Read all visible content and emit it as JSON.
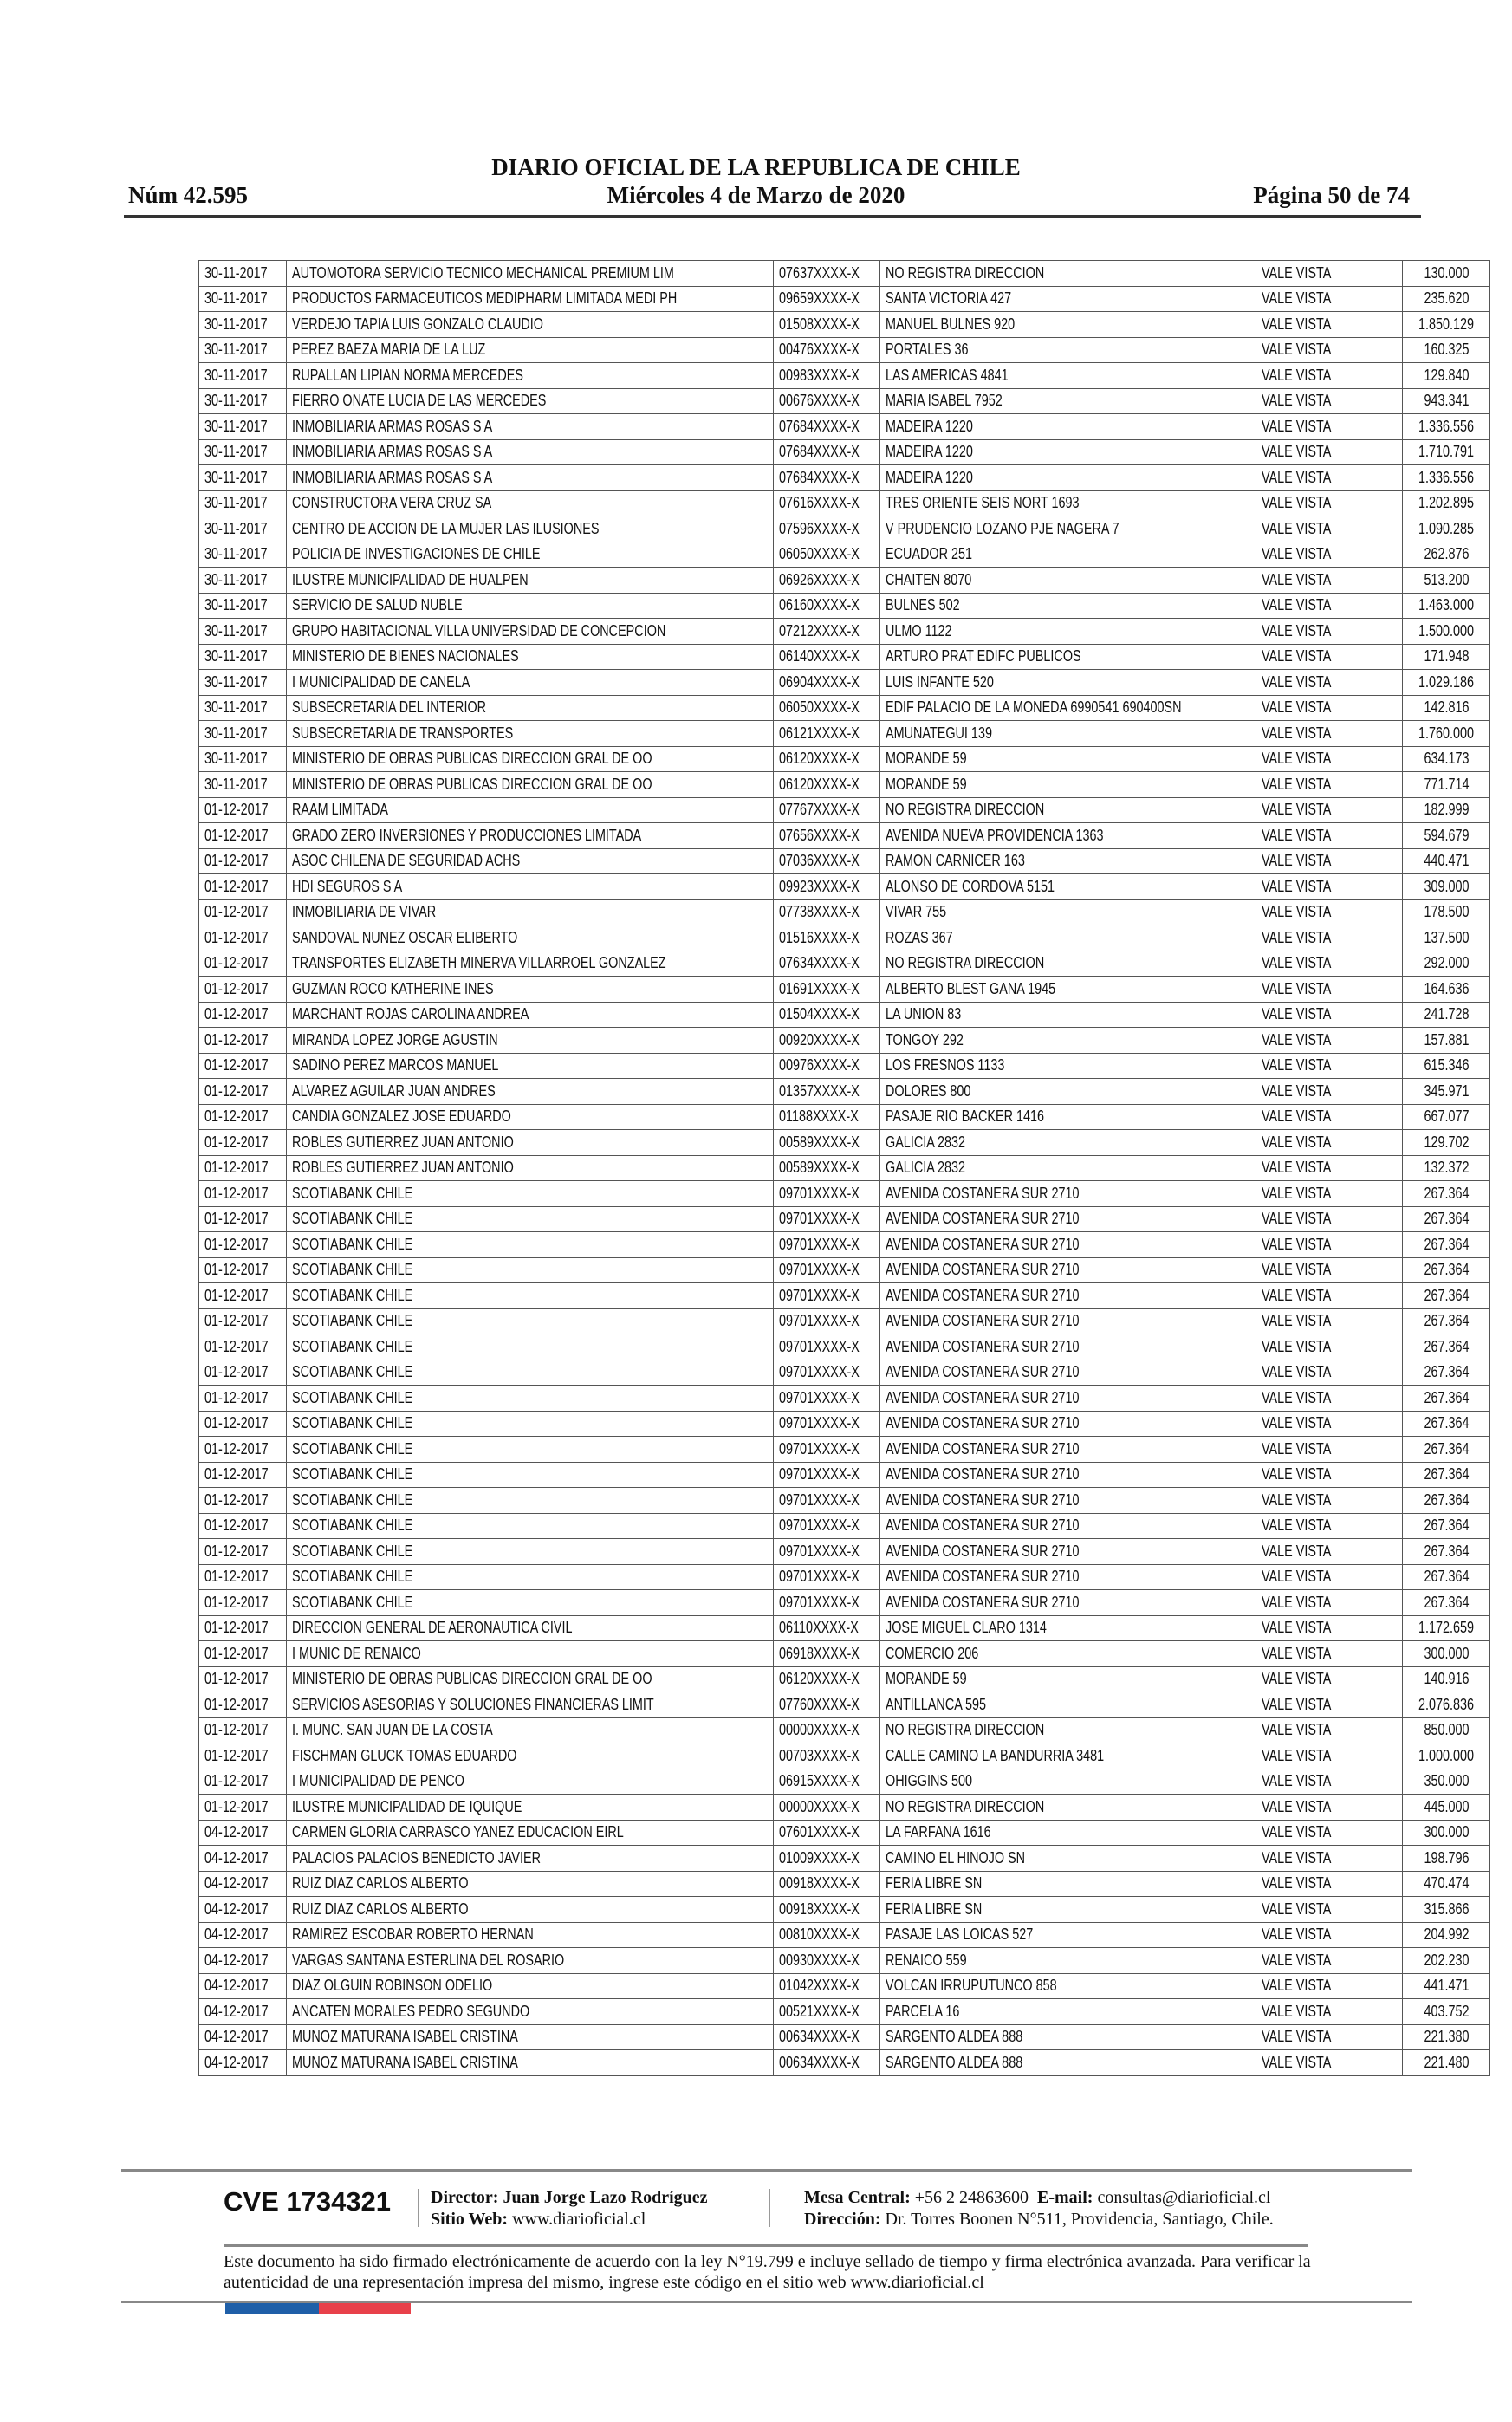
{
  "header": {
    "title": "DIARIO OFICIAL DE LA REPUBLICA DE CHILE",
    "date": "Miércoles 4 de Marzo de 2020",
    "number": "Núm 42.595",
    "page": "Página 50 de 74"
  },
  "rows": [
    [
      "30-11-2017",
      "AUTOMOTORA SERVICIO TECNICO MECHANICAL PREMIUM LIM",
      "07637XXXX-X",
      "NO REGISTRA DIRECCION",
      "VALE VISTA",
      "130.000"
    ],
    [
      "30-11-2017",
      "PRODUCTOS FARMACEUTICOS MEDIPHARM LIMITADA MEDI PH",
      "09659XXXX-X",
      "SANTA VICTORIA 427",
      "VALE VISTA",
      "235.620"
    ],
    [
      "30-11-2017",
      "VERDEJO TAPIA LUIS GONZALO CLAUDIO",
      "01508XXXX-X",
      "MANUEL BULNES 920",
      "VALE VISTA",
      "1.850.129"
    ],
    [
      "30-11-2017",
      "PEREZ BAEZA MARIA DE LA LUZ",
      "00476XXXX-X",
      "PORTALES 36",
      "VALE VISTA",
      "160.325"
    ],
    [
      "30-11-2017",
      "RUPALLAN LIPIAN NORMA MERCEDES",
      "00983XXXX-X",
      "LAS AMERICAS 4841",
      "VALE VISTA",
      "129.840"
    ],
    [
      "30-11-2017",
      "FIERRO ONATE LUCIA DE LAS MERCEDES",
      "00676XXXX-X",
      "MARIA ISABEL 7952",
      "VALE VISTA",
      "943.341"
    ],
    [
      "30-11-2017",
      "INMOBILIARIA ARMAS ROSAS S A",
      "07684XXXX-X",
      "MADEIRA 1220",
      "VALE VISTA",
      "1.336.556"
    ],
    [
      "30-11-2017",
      "INMOBILIARIA ARMAS ROSAS S A",
      "07684XXXX-X",
      "MADEIRA 1220",
      "VALE VISTA",
      "1.710.791"
    ],
    [
      "30-11-2017",
      "INMOBILIARIA ARMAS ROSAS S A",
      "07684XXXX-X",
      "MADEIRA 1220",
      "VALE VISTA",
      "1.336.556"
    ],
    [
      "30-11-2017",
      "CONSTRUCTORA VERA CRUZ SA",
      "07616XXXX-X",
      "TRES ORIENTE SEIS NORT 1693",
      "VALE VISTA",
      "1.202.895"
    ],
    [
      "30-11-2017",
      "CENTRO DE ACCION DE LA MUJER LAS ILUSIONES",
      "07596XXXX-X",
      "V PRUDENCIO LOZANO PJE NAGERA 7",
      "VALE VISTA",
      "1.090.285"
    ],
    [
      "30-11-2017",
      "POLICIA DE INVESTIGACIONES DE CHILE",
      "06050XXXX-X",
      "ECUADOR 251",
      "VALE VISTA",
      "262.876"
    ],
    [
      "30-11-2017",
      "ILUSTRE MUNICIPALIDAD DE HUALPEN",
      "06926XXXX-X",
      "CHAITEN 8070",
      "VALE VISTA",
      "513.200"
    ],
    [
      "30-11-2017",
      "SERVICIO DE SALUD NUBLE",
      "06160XXXX-X",
      "BULNES 502",
      "VALE VISTA",
      "1.463.000"
    ],
    [
      "30-11-2017",
      "GRUPO HABITACIONAL VILLA UNIVERSIDAD DE CONCEPCION",
      "07212XXXX-X",
      "ULMO 1122",
      "VALE VISTA",
      "1.500.000"
    ],
    [
      "30-11-2017",
      "MINISTERIO DE BIENES NACIONALES",
      "06140XXXX-X",
      "ARTURO PRAT EDIFC PUBLICOS",
      "VALE VISTA",
      "171.948"
    ],
    [
      "30-11-2017",
      "I MUNICIPALIDAD DE CANELA",
      "06904XXXX-X",
      "LUIS INFANTE 520",
      "VALE VISTA",
      "1.029.186"
    ],
    [
      "30-11-2017",
      "SUBSECRETARIA DEL INTERIOR",
      "06050XXXX-X",
      "EDIF PALACIO DE LA MONEDA 6990541 690400SN",
      "VALE VISTA",
      "142.816"
    ],
    [
      "30-11-2017",
      "SUBSECRETARIA DE TRANSPORTES",
      "06121XXXX-X",
      "AMUNATEGUI 139",
      "VALE VISTA",
      "1.760.000"
    ],
    [
      "30-11-2017",
      "MINISTERIO DE OBRAS PUBLICAS DIRECCION GRAL DE OO",
      "06120XXXX-X",
      "MORANDE 59",
      "VALE VISTA",
      "634.173"
    ],
    [
      "30-11-2017",
      "MINISTERIO DE OBRAS PUBLICAS DIRECCION GRAL DE OO",
      "06120XXXX-X",
      "MORANDE 59",
      "VALE VISTA",
      "771.714"
    ],
    [
      "01-12-2017",
      "RAAM LIMITADA",
      "07767XXXX-X",
      "NO REGISTRA DIRECCION",
      "VALE VISTA",
      "182.999"
    ],
    [
      "01-12-2017",
      "GRADO ZERO INVERSIONES Y PRODUCCIONES LIMITADA",
      "07656XXXX-X",
      "AVENIDA NUEVA PROVIDENCIA 1363",
      "VALE VISTA",
      "594.679"
    ],
    [
      "01-12-2017",
      "ASOC CHILENA DE SEGURIDAD ACHS",
      "07036XXXX-X",
      "RAMON CARNICER 163",
      "VALE VISTA",
      "440.471"
    ],
    [
      "01-12-2017",
      "HDI SEGUROS S A",
      "09923XXXX-X",
      "ALONSO DE CORDOVA 5151",
      "VALE VISTA",
      "309.000"
    ],
    [
      "01-12-2017",
      "INMOBILIARIA DE VIVAR",
      "07738XXXX-X",
      "VIVAR 755",
      "VALE VISTA",
      "178.500"
    ],
    [
      "01-12-2017",
      "SANDOVAL NUNEZ OSCAR ELIBERTO",
      "01516XXXX-X",
      "ROZAS 367",
      "VALE VISTA",
      "137.500"
    ],
    [
      "01-12-2017",
      "TRANSPORTES ELIZABETH MINERVA VILLARROEL GONZALEZ",
      "07634XXXX-X",
      "NO REGISTRA DIRECCION",
      "VALE VISTA",
      "292.000"
    ],
    [
      "01-12-2017",
      "GUZMAN ROCO KATHERINE INES",
      "01691XXXX-X",
      "ALBERTO BLEST GANA 1945",
      "VALE VISTA",
      "164.636"
    ],
    [
      "01-12-2017",
      "MARCHANT ROJAS CAROLINA ANDREA",
      "01504XXXX-X",
      "LA UNION 83",
      "VALE VISTA",
      "241.728"
    ],
    [
      "01-12-2017",
      "MIRANDA LOPEZ JORGE AGUSTIN",
      "00920XXXX-X",
      "TONGOY 292",
      "VALE VISTA",
      "157.881"
    ],
    [
      "01-12-2017",
      "SADINO PEREZ MARCOS MANUEL",
      "00976XXXX-X",
      "LOS FRESNOS 1133",
      "VALE VISTA",
      "615.346"
    ],
    [
      "01-12-2017",
      "ALVAREZ AGUILAR JUAN ANDRES",
      "01357XXXX-X",
      "DOLORES 800",
      "VALE VISTA",
      "345.971"
    ],
    [
      "01-12-2017",
      "CANDIA GONZALEZ JOSE EDUARDO",
      "01188XXXX-X",
      "PASAJE RIO BACKER 1416",
      "VALE VISTA",
      "667.077"
    ],
    [
      "01-12-2017",
      "ROBLES GUTIERREZ JUAN ANTONIO",
      "00589XXXX-X",
      "GALICIA 2832",
      "VALE VISTA",
      "129.702"
    ],
    [
      "01-12-2017",
      "ROBLES GUTIERREZ JUAN ANTONIO",
      "00589XXXX-X",
      "GALICIA 2832",
      "VALE VISTA",
      "132.372"
    ],
    [
      "01-12-2017",
      "SCOTIABANK CHILE",
      "09701XXXX-X",
      "AVENIDA COSTANERA SUR 2710",
      "VALE VISTA",
      "267.364"
    ],
    [
      "01-12-2017",
      "SCOTIABANK CHILE",
      "09701XXXX-X",
      "AVENIDA COSTANERA SUR 2710",
      "VALE VISTA",
      "267.364"
    ],
    [
      "01-12-2017",
      "SCOTIABANK CHILE",
      "09701XXXX-X",
      "AVENIDA COSTANERA SUR 2710",
      "VALE VISTA",
      "267.364"
    ],
    [
      "01-12-2017",
      "SCOTIABANK CHILE",
      "09701XXXX-X",
      "AVENIDA COSTANERA SUR 2710",
      "VALE VISTA",
      "267.364"
    ],
    [
      "01-12-2017",
      "SCOTIABANK CHILE",
      "09701XXXX-X",
      "AVENIDA COSTANERA SUR 2710",
      "VALE VISTA",
      "267.364"
    ],
    [
      "01-12-2017",
      "SCOTIABANK CHILE",
      "09701XXXX-X",
      "AVENIDA COSTANERA SUR 2710",
      "VALE VISTA",
      "267.364"
    ],
    [
      "01-12-2017",
      "SCOTIABANK CHILE",
      "09701XXXX-X",
      "AVENIDA COSTANERA SUR 2710",
      "VALE VISTA",
      "267.364"
    ],
    [
      "01-12-2017",
      "SCOTIABANK CHILE",
      "09701XXXX-X",
      "AVENIDA COSTANERA SUR 2710",
      "VALE VISTA",
      "267.364"
    ],
    [
      "01-12-2017",
      "SCOTIABANK CHILE",
      "09701XXXX-X",
      "AVENIDA COSTANERA SUR 2710",
      "VALE VISTA",
      "267.364"
    ],
    [
      "01-12-2017",
      "SCOTIABANK CHILE",
      "09701XXXX-X",
      "AVENIDA COSTANERA SUR 2710",
      "VALE VISTA",
      "267.364"
    ],
    [
      "01-12-2017",
      "SCOTIABANK CHILE",
      "09701XXXX-X",
      "AVENIDA COSTANERA SUR 2710",
      "VALE VISTA",
      "267.364"
    ],
    [
      "01-12-2017",
      "SCOTIABANK CHILE",
      "09701XXXX-X",
      "AVENIDA COSTANERA SUR 2710",
      "VALE VISTA",
      "267.364"
    ],
    [
      "01-12-2017",
      "SCOTIABANK CHILE",
      "09701XXXX-X",
      "AVENIDA COSTANERA SUR 2710",
      "VALE VISTA",
      "267.364"
    ],
    [
      "01-12-2017",
      "SCOTIABANK CHILE",
      "09701XXXX-X",
      "AVENIDA COSTANERA SUR 2710",
      "VALE VISTA",
      "267.364"
    ],
    [
      "01-12-2017",
      "SCOTIABANK CHILE",
      "09701XXXX-X",
      "AVENIDA COSTANERA SUR 2710",
      "VALE VISTA",
      "267.364"
    ],
    [
      "01-12-2017",
      "SCOTIABANK CHILE",
      "09701XXXX-X",
      "AVENIDA COSTANERA SUR 2710",
      "VALE VISTA",
      "267.364"
    ],
    [
      "01-12-2017",
      "SCOTIABANK CHILE",
      "09701XXXX-X",
      "AVENIDA COSTANERA SUR 2710",
      "VALE VISTA",
      "267.364"
    ],
    [
      "01-12-2017",
      "DIRECCION GENERAL DE AERONAUTICA CIVIL",
      "06110XXXX-X",
      "JOSE MIGUEL CLARO 1314",
      "VALE VISTA",
      "1.172.659"
    ],
    [
      "01-12-2017",
      "I MUNIC DE RENAICO",
      "06918XXXX-X",
      "COMERCIO 206",
      "VALE VISTA",
      "300.000"
    ],
    [
      "01-12-2017",
      "MINISTERIO DE OBRAS PUBLICAS DIRECCION GRAL DE OO",
      "06120XXXX-X",
      "MORANDE 59",
      "VALE VISTA",
      "140.916"
    ],
    [
      "01-12-2017",
      "SERVICIOS ASESORIAS Y SOLUCIONES FINANCIERAS LIMIT",
      "07760XXXX-X",
      "ANTILLANCA 595",
      "VALE VISTA",
      "2.076.836"
    ],
    [
      "01-12-2017",
      "I. MUNC. SAN JUAN DE LA COSTA",
      "00000XXXX-X",
      "NO REGISTRA DIRECCION",
      "VALE VISTA",
      "850.000"
    ],
    [
      "01-12-2017",
      "FISCHMAN GLUCK TOMAS EDUARDO",
      "00703XXXX-X",
      "CALLE CAMINO LA BANDURRIA 3481",
      "VALE VISTA",
      "1.000.000"
    ],
    [
      "01-12-2017",
      "I MUNICIPALIDAD DE PENCO",
      "06915XXXX-X",
      "OHIGGINS 500",
      "VALE VISTA",
      "350.000"
    ],
    [
      "01-12-2017",
      "ILUSTRE MUNICIPALIDAD DE IQUIQUE",
      "00000XXXX-X",
      "NO REGISTRA DIRECCION",
      "VALE VISTA",
      "445.000"
    ],
    [
      "04-12-2017",
      "CARMEN GLORIA CARRASCO YANEZ EDUCACION EIRL",
      "07601XXXX-X",
      "LA FARFANA 1616",
      "VALE VISTA",
      "300.000"
    ],
    [
      "04-12-2017",
      "PALACIOS PALACIOS BENEDICTO JAVIER",
      "01009XXXX-X",
      "CAMINO EL HINOJO SN",
      "VALE VISTA",
      "198.796"
    ],
    [
      "04-12-2017",
      "RUIZ DIAZ CARLOS ALBERTO",
      "00918XXXX-X",
      "FERIA LIBRE SN",
      "VALE VISTA",
      "470.474"
    ],
    [
      "04-12-2017",
      "RUIZ DIAZ CARLOS ALBERTO",
      "00918XXXX-X",
      "FERIA LIBRE SN",
      "VALE VISTA",
      "315.866"
    ],
    [
      "04-12-2017",
      "RAMIREZ ESCOBAR ROBERTO HERNAN",
      "00810XXXX-X",
      "PASAJE LAS LOICAS 527",
      "VALE VISTA",
      "204.992"
    ],
    [
      "04-12-2017",
      "VARGAS SANTANA ESTERLINA DEL ROSARIO",
      "00930XXXX-X",
      "RENAICO 559",
      "VALE VISTA",
      "202.230"
    ],
    [
      "04-12-2017",
      "DIAZ OLGUIN ROBINSON ODELIO",
      "01042XXXX-X",
      "VOLCAN IRRUPUTUNCO 858",
      "VALE VISTA",
      "441.471"
    ],
    [
      "04-12-2017",
      "ANCATEN MORALES PEDRO SEGUNDO",
      "00521XXXX-X",
      "PARCELA 16",
      "VALE VISTA",
      "403.752"
    ],
    [
      "04-12-2017",
      "MUNOZ MATURANA ISABEL CRISTINA",
      "00634XXXX-X",
      "SARGENTO ALDEA 888",
      "VALE VISTA",
      "221.380"
    ],
    [
      "04-12-2017",
      "MUNOZ MATURANA ISABEL CRISTINA",
      "00634XXXX-X",
      "SARGENTO ALDEA 888",
      "VALE VISTA",
      "221.480"
    ]
  ],
  "footer": {
    "cve": "CVE 1734321",
    "director_label": "Director:",
    "director": "Juan Jorge Lazo Rodríguez",
    "web_label": "Sitio Web:",
    "web": "www.diarioficial.cl",
    "mesa_label": "Mesa Central:",
    "mesa": "+56 2 24863600",
    "email_label": "E-mail:",
    "email": "consultas@diarioficial.cl",
    "dir_label": "Dirección:",
    "dir": "Dr. Torres Boonen N°511, Providencia, Santiago, Chile.",
    "notice": "Este documento ha sido firmado electrónicamente de acuerdo con la ley N°19.799 e incluye sellado de tiempo y firma electrónica avanzada. Para verificar la autenticidad de una representación impresa del mismo, ingrese este código en el sitio web www.diarioficial.cl",
    "flag_colors": [
      "#1f5fa8",
      "#e8414a"
    ]
  }
}
